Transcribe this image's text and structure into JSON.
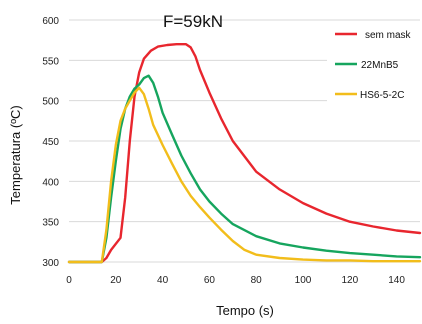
{
  "chart_data": {
    "type": "line",
    "title": "F=59kN",
    "xlabel": "Tempo  (s)",
    "ylabel": "Temperatura  (ºC)",
    "xlim": [
      0,
      150
    ],
    "ylim": [
      300,
      600
    ],
    "x_ticks": [
      "0",
      "20",
      "40",
      "60",
      "80",
      "100",
      "120",
      "140"
    ],
    "y_ticks": [
      "300",
      "350",
      "400",
      "450",
      "500",
      "550",
      "600"
    ],
    "grid": "horizontal",
    "legend_position": "top-right",
    "series": [
      {
        "name": "sem mask",
        "color": "#e8262e",
        "points": [
          [
            0,
            300
          ],
          [
            14,
            300
          ],
          [
            16,
            305
          ],
          [
            18,
            315
          ],
          [
            22,
            330
          ],
          [
            24,
            380
          ],
          [
            26,
            450
          ],
          [
            28,
            505
          ],
          [
            30,
            535
          ],
          [
            32,
            552
          ],
          [
            35,
            562
          ],
          [
            38,
            567
          ],
          [
            42,
            569
          ],
          [
            46,
            570
          ],
          [
            50,
            570
          ],
          [
            52,
            566
          ],
          [
            54,
            555
          ],
          [
            56,
            538
          ],
          [
            60,
            510
          ],
          [
            65,
            478
          ],
          [
            70,
            450
          ],
          [
            80,
            412
          ],
          [
            90,
            390
          ],
          [
            100,
            373
          ],
          [
            110,
            360
          ],
          [
            120,
            350
          ],
          [
            130,
            344
          ],
          [
            140,
            339
          ],
          [
            150,
            336
          ]
        ]
      },
      {
        "name": "22MnB5",
        "color": "#16a55e",
        "points": [
          [
            0,
            300
          ],
          [
            14,
            300
          ],
          [
            16,
            330
          ],
          [
            18,
            380
          ],
          [
            20,
            425
          ],
          [
            22,
            465
          ],
          [
            24,
            490
          ],
          [
            26,
            505
          ],
          [
            28,
            515
          ],
          [
            30,
            520
          ],
          [
            32,
            528
          ],
          [
            34,
            531
          ],
          [
            36,
            522
          ],
          [
            38,
            505
          ],
          [
            40,
            485
          ],
          [
            44,
            458
          ],
          [
            48,
            432
          ],
          [
            52,
            410
          ],
          [
            56,
            390
          ],
          [
            60,
            375
          ],
          [
            65,
            360
          ],
          [
            70,
            347
          ],
          [
            80,
            332
          ],
          [
            90,
            323
          ],
          [
            100,
            318
          ],
          [
            110,
            314
          ],
          [
            120,
            311
          ],
          [
            130,
            309
          ],
          [
            140,
            307
          ],
          [
            150,
            306
          ]
        ]
      },
      {
        "name": "HS6-5-2C",
        "color": "#f2bd1b",
        "points": [
          [
            0,
            300
          ],
          [
            14,
            300
          ],
          [
            16,
            340
          ],
          [
            18,
            400
          ],
          [
            20,
            445
          ],
          [
            22,
            475
          ],
          [
            24,
            490
          ],
          [
            26,
            500
          ],
          [
            28,
            510
          ],
          [
            30,
            516
          ],
          [
            32,
            508
          ],
          [
            34,
            490
          ],
          [
            36,
            470
          ],
          [
            40,
            445
          ],
          [
            44,
            422
          ],
          [
            48,
            400
          ],
          [
            52,
            382
          ],
          [
            56,
            368
          ],
          [
            60,
            355
          ],
          [
            65,
            340
          ],
          [
            70,
            326
          ],
          [
            75,
            315
          ],
          [
            80,
            309
          ],
          [
            90,
            305
          ],
          [
            100,
            303
          ],
          [
            110,
            302
          ],
          [
            120,
            302
          ],
          [
            130,
            301
          ],
          [
            150,
            301
          ]
        ]
      }
    ]
  }
}
